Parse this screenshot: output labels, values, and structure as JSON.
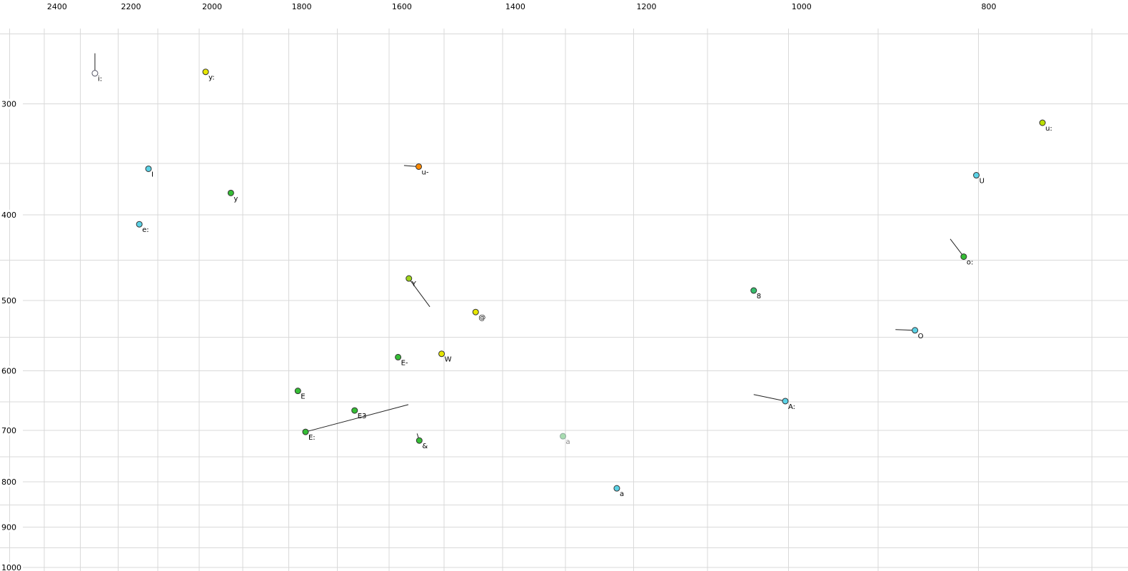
{
  "chart_data": {
    "type": "scatter",
    "title": "",
    "xlabel": "",
    "ylabel": "",
    "x_axis": {
      "scale": "log",
      "reversed": true,
      "left_value": 2528,
      "right_value": 671,
      "tick_values": [
        2400,
        2200,
        2000,
        1800,
        1600,
        1400,
        1200,
        1000,
        800
      ],
      "grid_values": [
        2500,
        2400,
        2300,
        2200,
        2100,
        2000,
        1900,
        1800,
        1700,
        1600,
        1500,
        1400,
        1300,
        1200,
        1100,
        1000,
        900,
        800,
        700
      ]
    },
    "y_axis": {
      "scale": "log",
      "top_value": 229,
      "bottom_value": 1009,
      "tick_values": [
        300,
        400,
        500,
        600,
        700,
        800,
        900,
        1000
      ],
      "grid_values": [
        250,
        300,
        350,
        400,
        450,
        500,
        550,
        600,
        650,
        700,
        750,
        800,
        850,
        900,
        950,
        1000
      ]
    },
    "style": {
      "background": "#ffffff",
      "grid_color": "#d9d9d9",
      "tick_label_color": "#000000",
      "point_stroke": "#333333",
      "tail_color": "#222222",
      "label_color": "#000000"
    },
    "points": [
      {
        "label": "i:",
        "f2": 2261,
        "f1": 277,
        "color": "#ffffff",
        "stroke": "#556",
        "tail": [
          [
            2261,
            263
          ],
          [
            2261,
            277
          ]
        ]
      },
      {
        "label": "y:",
        "f2": 1985,
        "f1": 276,
        "color": "#e6e600"
      },
      {
        "label": "u:",
        "f2": 742,
        "f1": 315,
        "color": "#bcdf00"
      },
      {
        "label": "I",
        "f2": 2123,
        "f1": 355,
        "color": "#5bd2e6"
      },
      {
        "label": "u-",
        "f2": 1545,
        "f1": 353,
        "color": "#ff8a00",
        "tail": [
          [
            1572,
            352
          ],
          [
            1545,
            353
          ]
        ]
      },
      {
        "label": "U",
        "f2": 802,
        "f1": 361,
        "color": "#5bd2e6"
      },
      {
        "label": "y",
        "f2": 1927,
        "f1": 378,
        "color": "#35bd35"
      },
      {
        "label": "e:",
        "f2": 2146,
        "f1": 410,
        "color": "#5bd2e6"
      },
      {
        "label": "o:",
        "f2": 814,
        "f1": 446,
        "color": "#35bd35",
        "tail": [
          [
            827,
            426
          ],
          [
            814,
            446
          ]
        ]
      },
      {
        "label": "Y",
        "f2": 1563,
        "f1": 472,
        "color": "#9fd41c",
        "tail": [
          [
            1525,
            508
          ],
          [
            1563,
            472
          ]
        ]
      },
      {
        "label": "8",
        "f2": 1042,
        "f1": 487,
        "color": "#35bd6b"
      },
      {
        "label": "@",
        "f2": 1445,
        "f1": 515,
        "color": "#e6e600"
      },
      {
        "label": "O",
        "f2": 862,
        "f1": 540,
        "color": "#5bd2e6",
        "tail": [
          [
            882,
            539
          ],
          [
            862,
            540
          ]
        ]
      },
      {
        "label": "E-",
        "f2": 1583,
        "f1": 579,
        "color": "#35bd35"
      },
      {
        "label": "W",
        "f2": 1504,
        "f1": 574,
        "color": "#e6e600"
      },
      {
        "label": "E",
        "f2": 1781,
        "f1": 632,
        "color": "#35bd35"
      },
      {
        "label": "A:",
        "f2": 1004,
        "f1": 649,
        "color": "#5bd2e6",
        "tail": [
          [
            1042,
            638
          ],
          [
            1004,
            649
          ]
        ]
      },
      {
        "label": "E3",
        "f2": 1666,
        "f1": 665,
        "color": "#35bd35"
      },
      {
        "label": "E:",
        "f2": 1765,
        "f1": 703,
        "color": "#35bd35",
        "tail": [
          [
            1564,
            655
          ],
          [
            1765,
            703
          ]
        ]
      },
      {
        "label": "&",
        "f2": 1544,
        "f1": 719,
        "color": "#35bd35",
        "tail": [
          [
            1548,
            706
          ],
          [
            1544,
            719
          ]
        ]
      },
      {
        "label": "a",
        "f2": 1304,
        "f1": 711,
        "color": "#a8dcb0",
        "stroke": "#90a8a0",
        "label_color": "#888888"
      },
      {
        "label": "a",
        "f2": 1224,
        "f1": 814,
        "color": "#5bd2e6"
      }
    ]
  }
}
